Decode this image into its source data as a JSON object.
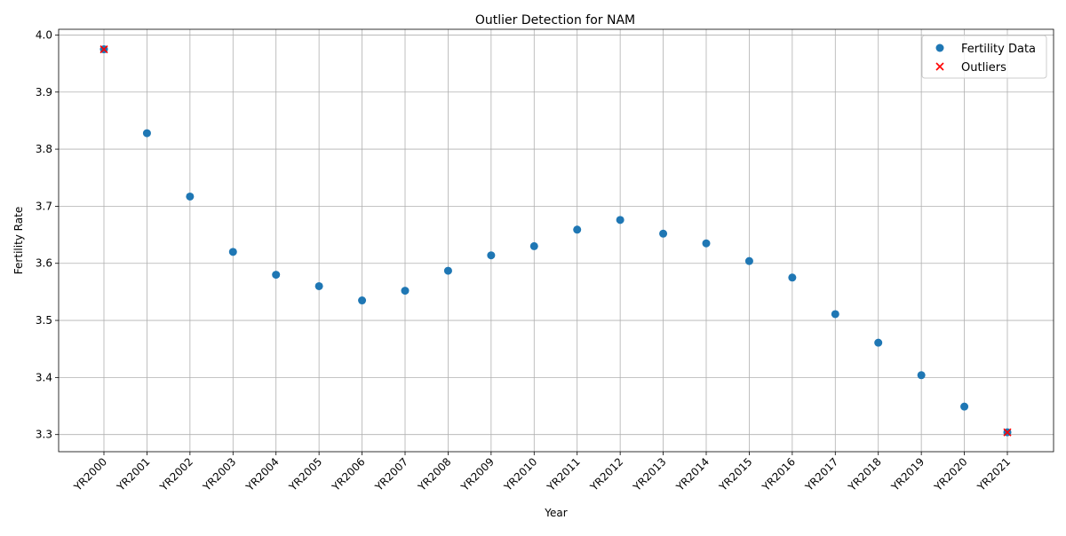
{
  "chart_data": {
    "type": "scatter",
    "title": "Outlier Detection for NAM",
    "xlabel": "Year",
    "ylabel": "Fertility Rate",
    "categories": [
      "YR2000",
      "YR2001",
      "YR2002",
      "YR2003",
      "YR2004",
      "YR2005",
      "YR2006",
      "YR2007",
      "YR2008",
      "YR2009",
      "YR2010",
      "YR2011",
      "YR2012",
      "YR2013",
      "YR2014",
      "YR2015",
      "YR2016",
      "YR2017",
      "YR2018",
      "YR2019",
      "YR2020",
      "YR2021"
    ],
    "ylim": [
      3.27,
      4.01
    ],
    "yticks": [
      3.3,
      3.4,
      3.5,
      3.6,
      3.7,
      3.8,
      3.9,
      4.0
    ],
    "ytick_labels": [
      "3.3",
      "3.4",
      "3.5",
      "3.6",
      "3.7",
      "3.8",
      "3.9",
      "4.0"
    ],
    "grid": true,
    "legend_position": "top-right",
    "series": [
      {
        "name": "Fertility Data",
        "marker": "circle",
        "color": "#1f77b4",
        "values": [
          3.975,
          3.828,
          3.717,
          3.62,
          3.58,
          3.56,
          3.535,
          3.552,
          3.587,
          3.614,
          3.63,
          3.659,
          3.676,
          3.652,
          3.635,
          3.604,
          3.575,
          3.511,
          3.461,
          3.404,
          3.349,
          3.304
        ]
      },
      {
        "name": "Outliers",
        "marker": "x",
        "color": "#ff0000",
        "points": [
          {
            "x": "YR2000",
            "y": 3.975
          },
          {
            "x": "YR2021",
            "y": 3.304
          }
        ]
      }
    ]
  }
}
